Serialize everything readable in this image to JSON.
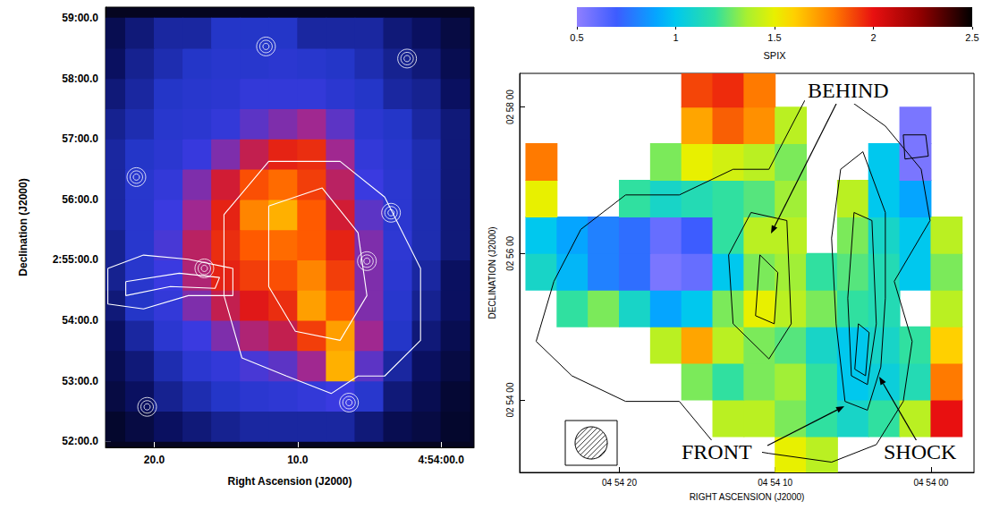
{
  "chart_data": [
    {
      "type": "heatmap",
      "xlabel": "Right Ascension (J2000)",
      "ylabel": "Declination (J2000)",
      "xlim": [
        23.4,
        -2.3
      ],
      "ylim": [
        51.9,
        59.18
      ],
      "xticks": [
        {
          "value": 20,
          "label": "20.0"
        },
        {
          "value": 10,
          "label": "10.0"
        },
        {
          "value": 0,
          "label": "4:54:00.0"
        }
      ],
      "yticks": [
        {
          "value": 52,
          "label": "52:00.0"
        },
        {
          "value": 53,
          "label": "53:00.0"
        },
        {
          "value": 54,
          "label": "54:00.0"
        },
        {
          "value": 55,
          "label": "2:55:00.0"
        },
        {
          "value": 56,
          "label": "56:00.0"
        },
        {
          "value": 57,
          "label": "57:00.0"
        },
        {
          "value": 58,
          "label": "58:00.0"
        },
        {
          "value": 59,
          "label": "59:00.0"
        }
      ],
      "zlim": [
        0,
        1
      ],
      "x": [
        23,
        21,
        19,
        17,
        15,
        13,
        11,
        9,
        7,
        5,
        3,
        1,
        -1
      ],
      "y": [
        52.25,
        52.75,
        53.25,
        53.75,
        54.25,
        54.75,
        55.25,
        55.75,
        56.25,
        56.75,
        57.25,
        57.75,
        58.25,
        58.75
      ],
      "values": [
        [
          0.05,
          0.08,
          0.12,
          0.15,
          0.18,
          0.2,
          0.2,
          0.2,
          0.2,
          0.15,
          0.1,
          0.08,
          0.05
        ],
        [
          0.08,
          0.12,
          0.18,
          0.22,
          0.25,
          0.3,
          0.32,
          0.35,
          0.4,
          0.28,
          0.15,
          0.1,
          0.06
        ],
        [
          0.1,
          0.15,
          0.22,
          0.3,
          0.35,
          0.42,
          0.45,
          0.55,
          0.9,
          0.45,
          0.2,
          0.12,
          0.08
        ],
        [
          0.12,
          0.2,
          0.3,
          0.4,
          0.5,
          0.58,
          0.62,
          0.75,
          0.88,
          0.55,
          0.25,
          0.15,
          0.1
        ],
        [
          0.15,
          0.25,
          0.35,
          0.5,
          0.62,
          0.68,
          0.72,
          0.88,
          0.8,
          0.5,
          0.28,
          0.18,
          0.12
        ],
        [
          0.18,
          0.28,
          0.4,
          0.58,
          0.7,
          0.75,
          0.78,
          0.85,
          0.75,
          0.5,
          0.3,
          0.2,
          0.12
        ],
        [
          0.18,
          0.28,
          0.42,
          0.6,
          0.72,
          0.8,
          0.82,
          0.8,
          0.7,
          0.5,
          0.32,
          0.22,
          0.15
        ],
        [
          0.2,
          0.28,
          0.4,
          0.55,
          0.7,
          0.85,
          0.9,
          0.8,
          0.65,
          0.45,
          0.3,
          0.22,
          0.15
        ],
        [
          0.2,
          0.28,
          0.35,
          0.5,
          0.65,
          0.78,
          0.82,
          0.75,
          0.6,
          0.4,
          0.3,
          0.22,
          0.15
        ],
        [
          0.2,
          0.25,
          0.3,
          0.38,
          0.5,
          0.62,
          0.7,
          0.72,
          0.55,
          0.35,
          0.28,
          0.22,
          0.15
        ],
        [
          0.18,
          0.22,
          0.28,
          0.3,
          0.35,
          0.45,
          0.5,
          0.55,
          0.45,
          0.3,
          0.25,
          0.2,
          0.15
        ],
        [
          0.15,
          0.2,
          0.25,
          0.28,
          0.3,
          0.35,
          0.35,
          0.35,
          0.3,
          0.25,
          0.2,
          0.18,
          0.12
        ],
        [
          0.12,
          0.18,
          0.22,
          0.25,
          0.28,
          0.28,
          0.3,
          0.28,
          0.25,
          0.22,
          0.18,
          0.15,
          0.1
        ],
        [
          0.1,
          0.15,
          0.2,
          0.2,
          0.25,
          0.25,
          0.25,
          0.2,
          0.2,
          0.2,
          0.15,
          0.12,
          0.08
        ]
      ],
      "contours": [
        [
          [
            15.14,
            55.75
          ],
          [
            12.02,
            56.63
          ],
          [
            7.04,
            56.63
          ],
          [
            3.93,
            56.04
          ],
          [
            1.43,
            54.86
          ],
          [
            1.43,
            53.67
          ],
          [
            3.93,
            53.08
          ],
          [
            5.79,
            53.08
          ],
          [
            7.66,
            52.79
          ],
          [
            10.78,
            53.08
          ],
          [
            13.89,
            53.38
          ],
          [
            15.14,
            54.41
          ]
        ],
        [
          [
            12.02,
            55.89
          ],
          [
            8.29,
            56.19
          ],
          [
            5.79,
            55.45
          ],
          [
            5.17,
            54.41
          ],
          [
            7.04,
            53.67
          ],
          [
            10.16,
            53.82
          ],
          [
            12.02,
            54.56
          ]
        ],
        [
          [
            23.24,
            54.86
          ],
          [
            20.75,
            55.08
          ],
          [
            17.63,
            55.01
          ],
          [
            14.52,
            54.86
          ],
          [
            14.52,
            54.41
          ],
          [
            17.63,
            54.41
          ],
          [
            20.75,
            54.19
          ],
          [
            23.24,
            54.27
          ]
        ],
        [
          [
            21.99,
            54.64
          ],
          [
            18.26,
            54.78
          ],
          [
            15.45,
            54.71
          ],
          [
            15.76,
            54.53
          ],
          [
            18.88,
            54.56
          ],
          [
            21.99,
            54.41
          ]
        ]
      ],
      "sources": [
        [
          12.21,
          58.53
        ],
        [
          2.37,
          58.33
        ],
        [
          21.25,
          56.37
        ],
        [
          3.49,
          55.78
        ],
        [
          5.17,
          54.98
        ],
        [
          20.5,
          52.57
        ],
        [
          6.42,
          52.64
        ],
        [
          16.51,
          54.86
        ]
      ]
    },
    {
      "type": "heatmap",
      "xlabel": "RIGHT ASCENSION (J2000)",
      "ylabel": "DECLINATION (J2000)",
      "xlim": [
        26.4,
        -2.76
      ],
      "ylim": [
        53.01,
        58.46
      ],
      "xticks": [
        {
          "value": 20,
          "label": "04 54 20"
        },
        {
          "value": 10,
          "label": "04 54 10"
        },
        {
          "value": 0,
          "label": "04 54 00"
        }
      ],
      "yticks": [
        {
          "value": 54,
          "label": "02 54 00"
        },
        {
          "value": 56,
          "label": "02 56 00"
        },
        {
          "value": 58,
          "label": "02 58 00"
        }
      ],
      "colorbar": {
        "label": "SPIX",
        "range": [
          0.5,
          2.5
        ],
        "ticks": [
          0.5,
          1,
          1.5,
          2,
          2.5
        ]
      },
      "x": [
        25,
        23,
        21,
        19,
        17,
        15,
        13,
        11,
        9,
        7,
        5,
        3,
        1,
        -1
      ],
      "y": [
        53.25,
        53.75,
        54.25,
        54.75,
        55.25,
        55.75,
        56.25,
        56.75,
        57.25,
        57.75,
        58.25
      ],
      "values": [
        [
          null,
          null,
          null,
          null,
          null,
          null,
          null,
          null,
          1.5,
          1.4,
          null,
          null,
          null,
          null
        ],
        [
          null,
          null,
          null,
          null,
          null,
          null,
          1.4,
          1.4,
          1.3,
          1.2,
          1.1,
          1.2,
          1.4,
          2.0
        ],
        [
          null,
          null,
          null,
          null,
          null,
          1.3,
          1.2,
          1.3,
          1.35,
          1.2,
          1.0,
          1.05,
          1.15,
          1.8
        ],
        [
          null,
          null,
          null,
          null,
          1.4,
          1.7,
          1.4,
          1.3,
          1.25,
          1.1,
          1.0,
          1.1,
          1.2,
          1.6
        ],
        [
          null,
          1.2,
          1.3,
          1.1,
          0.9,
          1.0,
          1.3,
          1.5,
          1.4,
          1.3,
          1.2,
          1.15,
          null,
          1.4
        ],
        [
          1.1,
          0.95,
          0.8,
          0.75,
          0.55,
          0.6,
          1.0,
          1.3,
          1.35,
          1.2,
          1.25,
          1.15,
          1.0,
          1.3
        ],
        [
          1.0,
          0.9,
          0.8,
          0.75,
          0.6,
          0.7,
          1.2,
          1.4,
          1.4,
          null,
          1.3,
          1.1,
          1.0,
          1.4
        ],
        [
          1.5,
          null,
          null,
          1.2,
          1.1,
          1.15,
          1.2,
          1.25,
          1.35,
          null,
          1.4,
          1.0,
          0.9,
          null
        ],
        [
          1.8,
          null,
          null,
          null,
          1.3,
          1.5,
          1.45,
          1.4,
          1.3,
          null,
          null,
          1.0,
          0.55,
          null
        ],
        [
          null,
          null,
          null,
          null,
          null,
          1.7,
          1.85,
          1.75,
          1.4,
          null,
          null,
          null,
          0.55,
          null
        ],
        [
          null,
          null,
          null,
          null,
          null,
          1.9,
          1.95,
          1.8,
          null,
          null,
          null,
          null,
          null,
          null
        ]
      ],
      "contours": [
        [
          [
            23.05,
            54.33
          ],
          [
            19.6,
            53.98
          ],
          [
            16.15,
            53.98
          ],
          [
            13.85,
            53.39
          ],
          [
            10.4,
            53.27
          ],
          [
            6.38,
            53.15
          ],
          [
            3.51,
            53.39
          ],
          [
            1.78,
            53.98
          ],
          [
            1.21,
            54.8
          ],
          [
            2.36,
            55.62
          ],
          [
            0.06,
            56.45
          ],
          [
            0.63,
            57.15
          ],
          [
            2.93,
            57.74
          ],
          [
            5.23,
            58.09
          ],
          [
            8.1,
            58.09
          ],
          [
            10.4,
            57.15
          ],
          [
            12.7,
            57.15
          ],
          [
            16.15,
            56.8
          ],
          [
            19.6,
            56.8
          ],
          [
            22.47,
            56.33
          ],
          [
            24.2,
            55.62
          ],
          [
            25.34,
            54.8
          ]
        ],
        [
          [
            5.8,
            57.15
          ],
          [
            4.37,
            57.39
          ],
          [
            2.93,
            56.56
          ],
          [
            2.93,
            55.39
          ],
          [
            3.22,
            54.45
          ],
          [
            4.08,
            53.86
          ],
          [
            5.52,
            53.98
          ],
          [
            6.09,
            55.04
          ],
          [
            6.38,
            56.21
          ]
        ],
        [
          [
            4.94,
            56.56
          ],
          [
            3.79,
            56.45
          ],
          [
            3.51,
            55.04
          ],
          [
            4.08,
            54.21
          ],
          [
            5.11,
            54.33
          ],
          [
            5.34,
            55.39
          ]
        ],
        [
          [
            4.66,
            55.04
          ],
          [
            3.97,
            54.92
          ],
          [
            4.2,
            54.33
          ],
          [
            4.89,
            54.42
          ]
        ],
        [
          [
            11.55,
            56.56
          ],
          [
            9.25,
            56.45
          ],
          [
            8.97,
            55.04
          ],
          [
            10.4,
            54.56
          ],
          [
            12.7,
            55.04
          ],
          [
            12.99,
            55.98
          ]
        ],
        [
          [
            10.98,
            55.98
          ],
          [
            9.83,
            55.74
          ],
          [
            10.06,
            55.04
          ],
          [
            11.26,
            55.15
          ]
        ],
        [
          [
            1.78,
            57.62
          ],
          [
            0.34,
            57.62
          ],
          [
            0.17,
            57.33
          ],
          [
            1.67,
            57.29
          ]
        ]
      ],
      "annotations": [
        "BEHIND",
        "FRONT",
        "SHOCK"
      ]
    }
  ]
}
